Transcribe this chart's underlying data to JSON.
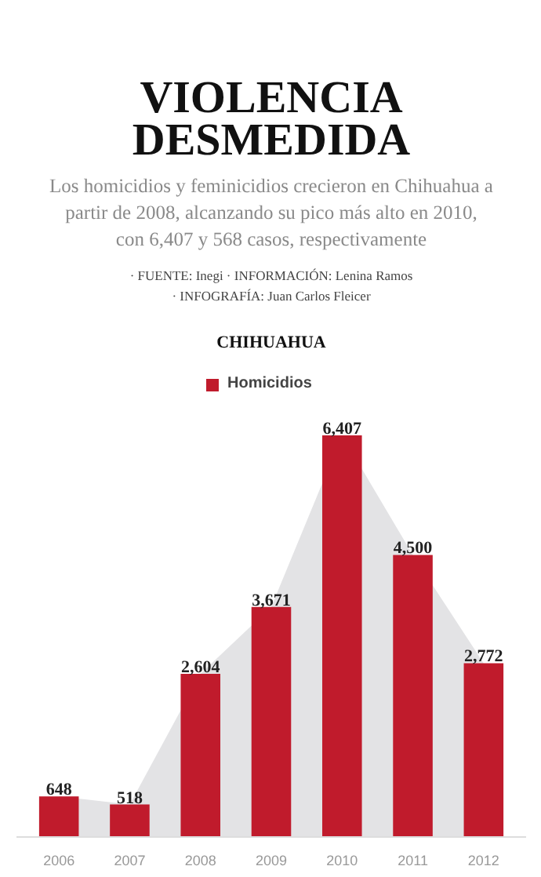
{
  "chart_data": {
    "type": "bar",
    "title": "VIOLENCIA DESMEDIDA",
    "subtitle": "Los homicidios y feminicidios crecieron en Chihuahua a partir de 2008, alcanzando su pico más alto en 2010, con 6,407 y 568 casos, respectivamente",
    "annotations": [
      "· FUENTE: Inegi · INFORMACIÓN: Lenina Ramos",
      "· INFOGRAFÍA: Juan Carlos Fleicer",
      "CHIHUAHUA"
    ],
    "categories": [
      "2006",
      "2007",
      "2008",
      "2009",
      "2010",
      "2011",
      "2012"
    ],
    "series": [
      {
        "type": "area",
        "color": "#e3e3e5",
        "values": [
          648,
          518,
          2604,
          3671,
          6407,
          4500,
          2772
        ]
      },
      {
        "name": "Homicidios",
        "color": "#c01b2c",
        "values": [
          648,
          518,
          2604,
          3671,
          6407,
          4500,
          2772
        ],
        "value_labels": [
          "648",
          "518",
          "2,604",
          "3,671",
          "6,407",
          "4,500",
          "2,772"
        ]
      }
    ],
    "legend": "top",
    "grid": false
  }
}
